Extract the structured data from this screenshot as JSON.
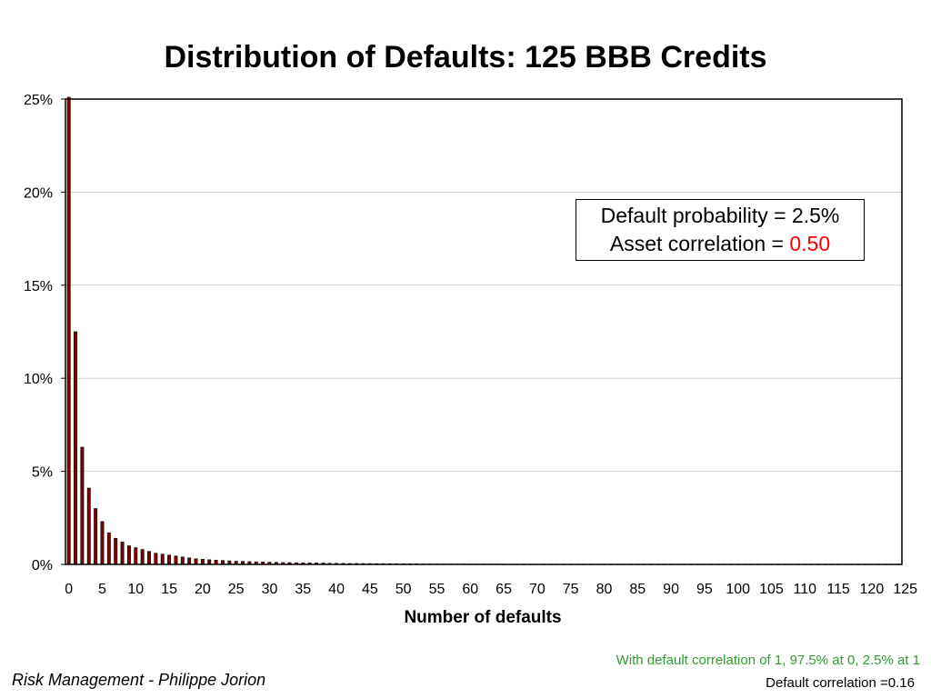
{
  "chart_data": {
    "type": "bar",
    "title": "Distribution of Defaults: 125 BBB Credits",
    "xlabel": "Number of defaults",
    "ylabel": "",
    "ylim": [
      0,
      0.25
    ],
    "yticks": [
      "0%",
      "5%",
      "10%",
      "15%",
      "20%",
      "25%"
    ],
    "xticks": [
      "0",
      "5",
      "10",
      "15",
      "20",
      "25",
      "30",
      "35",
      "40",
      "45",
      "50",
      "55",
      "60",
      "65",
      "70",
      "75",
      "80",
      "85",
      "90",
      "95",
      "100",
      "105",
      "110",
      "115",
      "120",
      "125"
    ],
    "grid": true,
    "x_range": [
      0,
      125
    ],
    "values": [
      0.251,
      0.125,
      0.063,
      0.041,
      0.03,
      0.023,
      0.017,
      0.014,
      0.012,
      0.01,
      0.009,
      0.008,
      0.007,
      0.006,
      0.0055,
      0.005,
      0.0045,
      0.004,
      0.0035,
      0.003,
      0.0028,
      0.0025,
      0.0023,
      0.0021,
      0.0019,
      0.0017,
      0.0016,
      0.0015,
      0.0014,
      0.0013,
      0.0012,
      0.0011,
      0.001,
      0.00095,
      0.0009,
      0.00085,
      0.0008,
      0.00075,
      0.0007,
      0.00065,
      0.0006,
      0.00055,
      0.0005,
      0.0005,
      0.00045,
      0.00045,
      0.0004,
      0.0004,
      0.00035,
      0.00035,
      0.0003,
      0.0003,
      0.0003,
      0.00025,
      0.00025,
      0.00025,
      0.0002,
      0.0002,
      0.0002,
      0.0002,
      0.00015,
      0.00015,
      0.00015,
      0.00015,
      0.00015,
      0.0001,
      0.0001,
      0.0001,
      0.0001,
      0.0001,
      0.0001,
      0.0001,
      0.0001,
      0.0001,
      0.0001,
      0.0001,
      0.0001,
      0.0001,
      0.0001,
      0.0001,
      0.0001,
      0.0001,
      0.0001,
      0.0001,
      0.0001,
      0.0001,
      0.0001,
      0.0001,
      0.0001,
      0.0001,
      0.0001,
      0.0001,
      0.0001,
      0.0001,
      0.0001,
      0.0001,
      0.0001,
      0.0001,
      0.0001,
      0.0001,
      0.0001,
      0.0001,
      0.0001,
      0.0001,
      0.0001,
      0.0001,
      0.0001,
      0.0001,
      0.0001,
      0.0001,
      0.0001,
      0.0001,
      0.0001,
      0.0001,
      0.0001,
      0.0001,
      0.0001,
      0.0001,
      0.0001,
      0.0001,
      0.0001,
      0.0001,
      0.0001,
      0.0001,
      0.0001
    ],
    "bar_color": "#800000",
    "annotations": {
      "line1": "Default probability = 2.5%",
      "line2_prefix": "Asset correlation = ",
      "line2_value": "0.50",
      "value_color": "#ff0000"
    }
  },
  "notes": {
    "green": "With default correlation of 1, 97.5% at 0, 2.5% at 1",
    "black": "Default correlation =0.16"
  },
  "footer": "Risk Management - Philippe Jorion"
}
